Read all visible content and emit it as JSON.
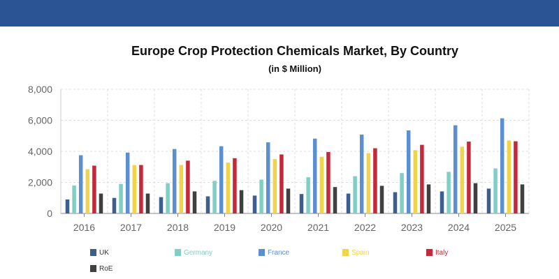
{
  "chart_data": {
    "type": "bar",
    "title": "Europe Crop Protection Chemicals Market, By Country",
    "subtitle": "(in $ Million)",
    "categories": [
      "2016",
      "2017",
      "2018",
      "2019",
      "2020",
      "2021",
      "2022",
      "2023",
      "2024",
      "2025"
    ],
    "ylim": [
      0,
      8000
    ],
    "yticks": [
      "0",
      "2,000",
      "4,000",
      "6,000",
      "8,000"
    ],
    "ytick_values": [
      0,
      2000,
      4000,
      6000,
      8000
    ],
    "grid": true,
    "legend_position": "bottom",
    "series": [
      {
        "name": "UK",
        "color": "#3d5f8e",
        "values": [
          900,
          1000,
          1050,
          1100,
          1150,
          1250,
          1280,
          1370,
          1420,
          1600
        ]
      },
      {
        "name": "Germany",
        "color": "#7fcfc4",
        "values": [
          1800,
          1900,
          1950,
          2100,
          2180,
          2330,
          2400,
          2600,
          2680,
          2900
        ]
      },
      {
        "name": "France",
        "color": "#5b8fd0",
        "values": [
          3750,
          3920,
          4150,
          4330,
          4580,
          4820,
          5080,
          5350,
          5680,
          6130
        ]
      },
      {
        "name": "Spain",
        "color": "#f2d44a",
        "values": [
          2850,
          3120,
          3120,
          3280,
          3500,
          3650,
          3880,
          4080,
          4300,
          4700
        ]
      },
      {
        "name": "Italy",
        "color": "#c4283a",
        "values": [
          3080,
          3120,
          3400,
          3560,
          3800,
          3960,
          4200,
          4420,
          4630,
          4650
        ]
      },
      {
        "name": "RoE",
        "color": "#404040",
        "values": [
          1280,
          1280,
          1420,
          1500,
          1600,
          1700,
          1780,
          1870,
          1950,
          1870
        ]
      }
    ]
  }
}
